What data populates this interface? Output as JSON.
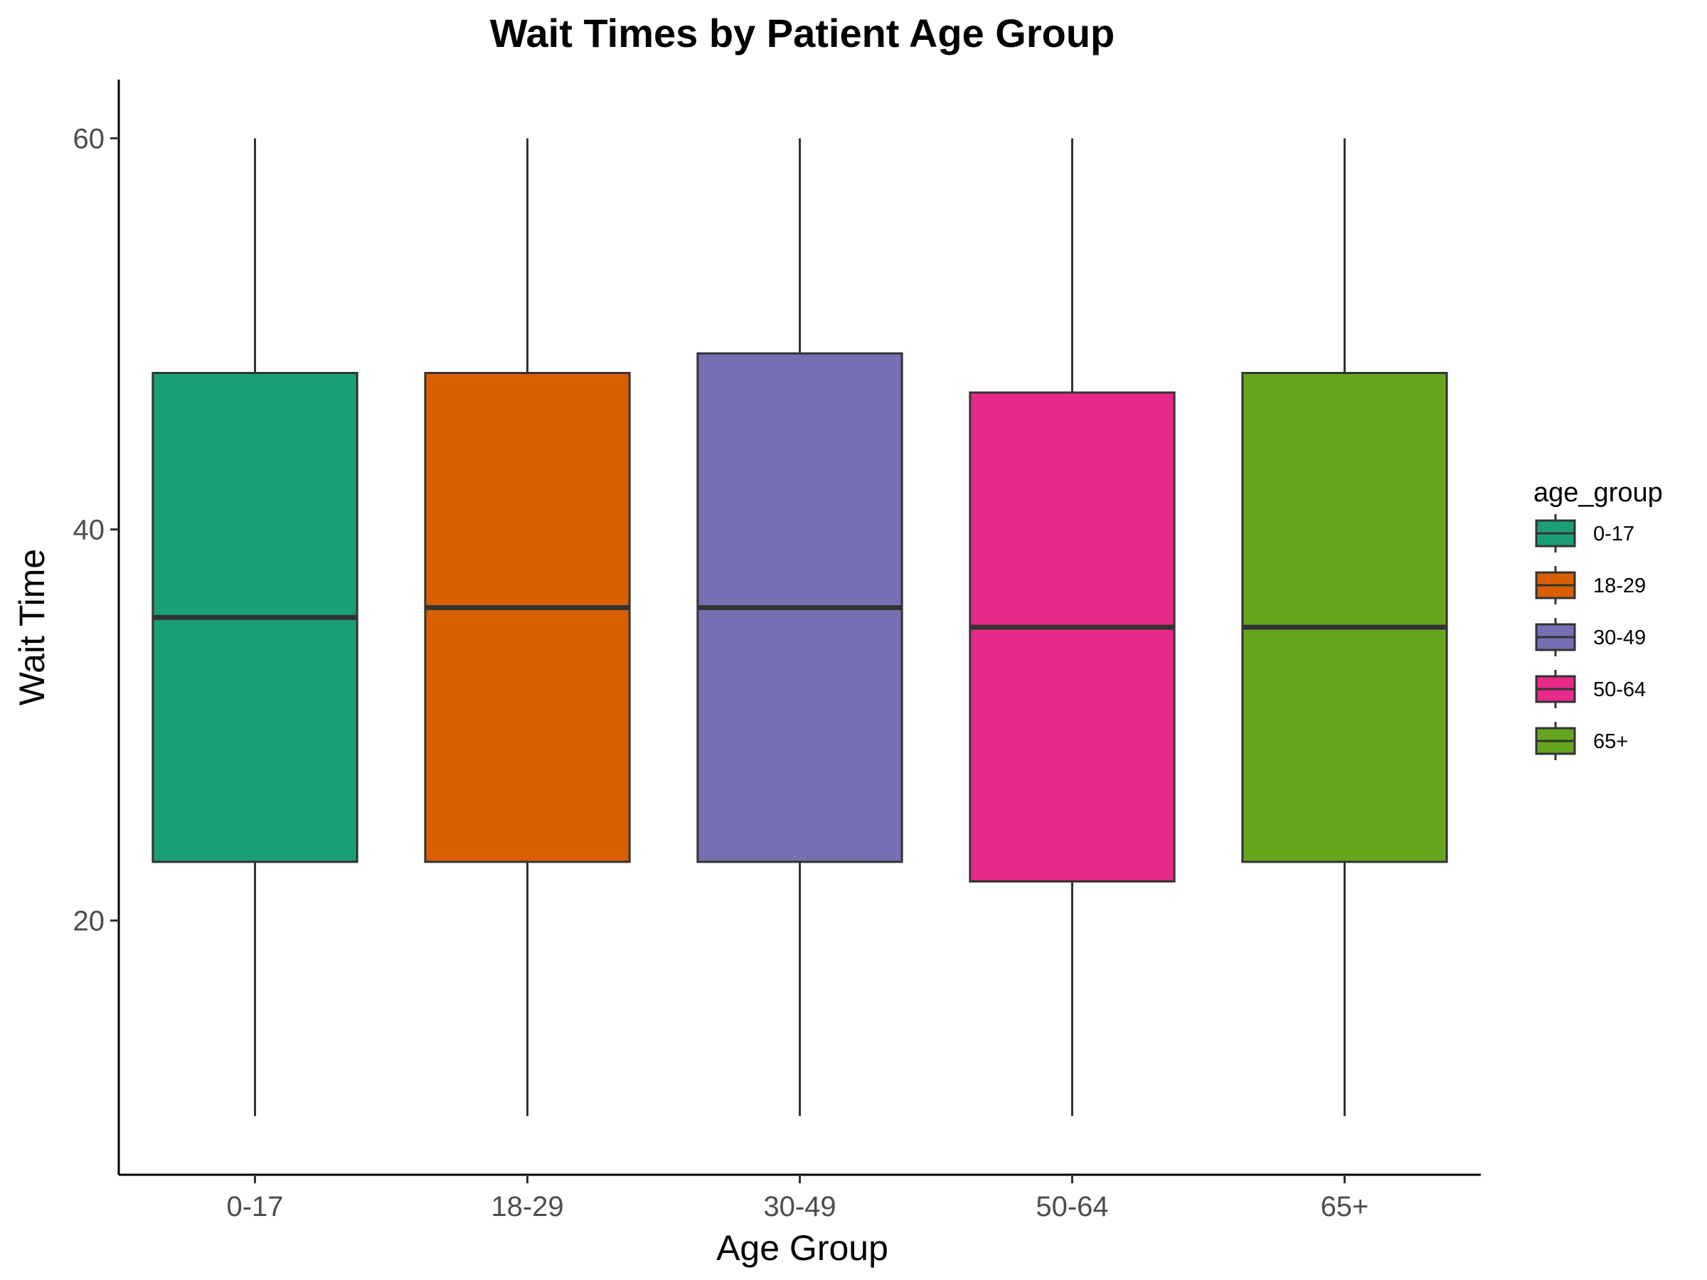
{
  "chart_data": {
    "type": "box",
    "title": "Wait Times by Patient Age Group",
    "xlabel": "Age Group",
    "ylabel": "Wait Time",
    "categories": [
      "0-17",
      "18-29",
      "30-49",
      "50-64",
      "65+"
    ],
    "ylim": [
      7,
      63
    ],
    "yticks": [
      20,
      40,
      60
    ],
    "grid": false,
    "legend": {
      "title": "age_group",
      "placement": "right",
      "entries": [
        "0-17",
        "18-29",
        "30-49",
        "50-64",
        "65+"
      ]
    },
    "series": [
      {
        "category": "0-17",
        "min": 10,
        "q1": 23,
        "median": 35.5,
        "q3": 48,
        "max": 60,
        "color": "#1b9e77"
      },
      {
        "category": "18-29",
        "min": 10,
        "q1": 23,
        "median": 36,
        "q3": 48,
        "max": 60,
        "color": "#d95f02"
      },
      {
        "category": "30-49",
        "min": 10,
        "q1": 23,
        "median": 36,
        "q3": 49,
        "max": 60,
        "color": "#7570b3"
      },
      {
        "category": "50-64",
        "min": 10,
        "q1": 22,
        "median": 35,
        "q3": 47,
        "max": 60,
        "color": "#e7298a"
      },
      {
        "category": "65+",
        "min": 10,
        "q1": 23,
        "median": 35,
        "q3": 48,
        "max": 60,
        "color": "#66a61e"
      }
    ]
  }
}
